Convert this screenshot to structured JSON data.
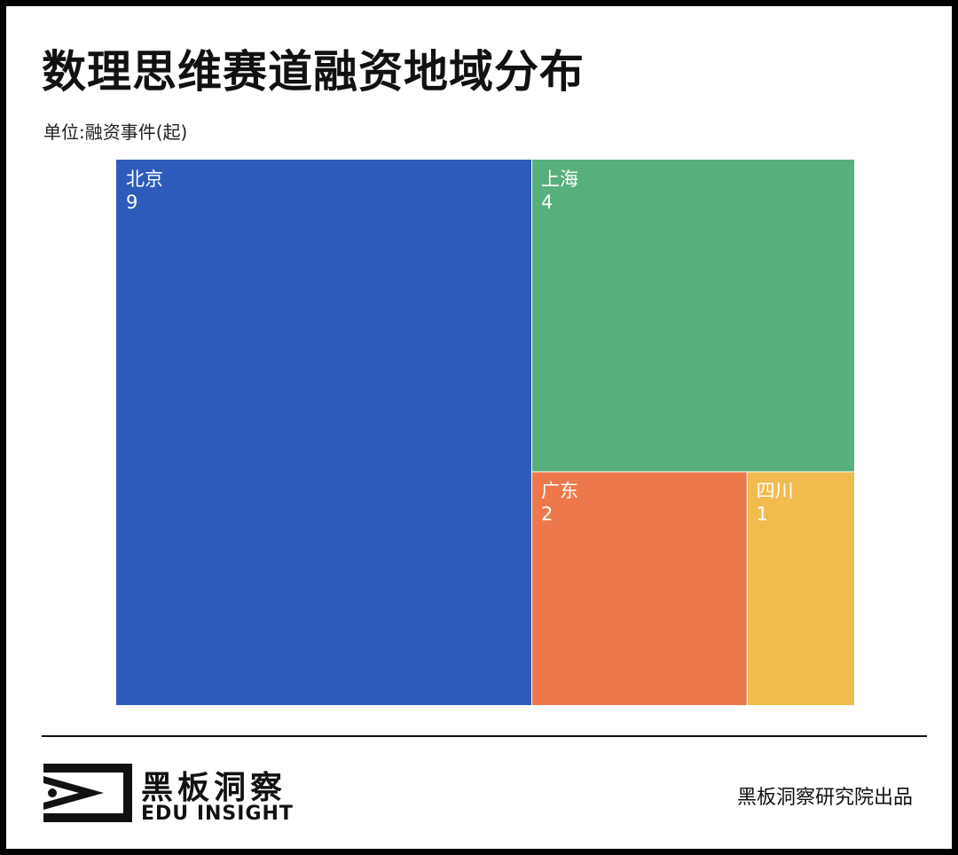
{
  "chart_data": {
    "type": "treemap",
    "title": "数理思维赛道融资地域分布",
    "subtitle": "单位:融资事件(起)",
    "nodes": [
      {
        "name": "北京",
        "value": 9,
        "color": "#2d5bbb"
      },
      {
        "name": "上海",
        "value": 4,
        "color": "#57b07b"
      },
      {
        "name": "广东",
        "value": 2,
        "color": "#ec784b"
      },
      {
        "name": "四川",
        "value": 1,
        "color": "#f2bb4e"
      }
    ]
  },
  "footer": {
    "brand_cn": "黑板洞察",
    "brand_en": "EDU INSIGHT",
    "credit": "黑板洞察研究院出品"
  }
}
